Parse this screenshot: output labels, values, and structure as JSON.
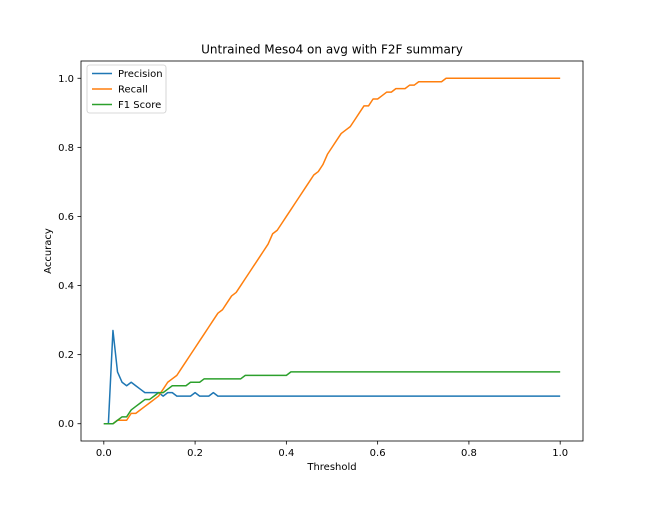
{
  "chart_data": {
    "type": "line",
    "title": "Untrained Meso4 on avg with F2F summary",
    "xlabel": "Threshold",
    "ylabel": "Accuracy",
    "xlim": [
      -0.05,
      1.05
    ],
    "ylim": [
      -0.05,
      1.05
    ],
    "xticks": [
      0.0,
      0.2,
      0.4,
      0.6,
      0.8,
      1.0
    ],
    "xtick_labels": [
      "0.0",
      "0.2",
      "0.4",
      "0.6",
      "0.8",
      "1.0"
    ],
    "yticks": [
      0.0,
      0.2,
      0.4,
      0.6,
      0.8,
      1.0
    ],
    "ytick_labels": [
      "0.0",
      "0.2",
      "0.4",
      "0.6",
      "0.8",
      "1.0"
    ],
    "grid": false,
    "legend_position": "top-left",
    "series": [
      {
        "name": "Precision",
        "color": "#1f77b4",
        "x": [
          0,
          0.01,
          0.02,
          0.03,
          0.04,
          0.05,
          0.06,
          0.07,
          0.08,
          0.09,
          0.1,
          0.11,
          0.12,
          0.13,
          0.14,
          0.15,
          0.16,
          0.17,
          0.18,
          0.19,
          0.2,
          0.21,
          0.22,
          0.23,
          0.24,
          0.25,
          0.3,
          0.4,
          0.5,
          0.6,
          0.7,
          0.8,
          0.9,
          1.0
        ],
        "y": [
          0,
          0,
          0.27,
          0.15,
          0.12,
          0.11,
          0.12,
          0.11,
          0.1,
          0.09,
          0.09,
          0.09,
          0.09,
          0.08,
          0.09,
          0.09,
          0.08,
          0.08,
          0.08,
          0.08,
          0.09,
          0.08,
          0.08,
          0.08,
          0.09,
          0.08,
          0.08,
          0.08,
          0.08,
          0.08,
          0.08,
          0.08,
          0.08,
          0.08
        ]
      },
      {
        "name": "Recall",
        "color": "#ff7f0e",
        "x": [
          0,
          0.01,
          0.02,
          0.03,
          0.04,
          0.05,
          0.06,
          0.07,
          0.08,
          0.09,
          0.1,
          0.11,
          0.12,
          0.13,
          0.14,
          0.15,
          0.16,
          0.17,
          0.18,
          0.19,
          0.2,
          0.21,
          0.22,
          0.23,
          0.24,
          0.25,
          0.26,
          0.27,
          0.28,
          0.29,
          0.3,
          0.31,
          0.32,
          0.33,
          0.34,
          0.35,
          0.36,
          0.37,
          0.38,
          0.39,
          0.4,
          0.41,
          0.42,
          0.43,
          0.44,
          0.45,
          0.46,
          0.47,
          0.48,
          0.49,
          0.5,
          0.51,
          0.52,
          0.53,
          0.54,
          0.55,
          0.56,
          0.57,
          0.58,
          0.59,
          0.6,
          0.61,
          0.62,
          0.63,
          0.64,
          0.65,
          0.66,
          0.67,
          0.68,
          0.69,
          0.7,
          0.71,
          0.72,
          0.73,
          0.74,
          0.75,
          0.8,
          0.9,
          1.0
        ],
        "y": [
          0,
          0,
          0,
          0.01,
          0.01,
          0.01,
          0.03,
          0.03,
          0.04,
          0.05,
          0.06,
          0.07,
          0.08,
          0.1,
          0.12,
          0.13,
          0.14,
          0.16,
          0.18,
          0.2,
          0.22,
          0.24,
          0.26,
          0.28,
          0.3,
          0.32,
          0.33,
          0.35,
          0.37,
          0.38,
          0.4,
          0.42,
          0.44,
          0.46,
          0.48,
          0.5,
          0.52,
          0.55,
          0.56,
          0.58,
          0.6,
          0.62,
          0.64,
          0.66,
          0.68,
          0.7,
          0.72,
          0.73,
          0.75,
          0.78,
          0.8,
          0.82,
          0.84,
          0.85,
          0.86,
          0.88,
          0.9,
          0.92,
          0.92,
          0.94,
          0.94,
          0.95,
          0.96,
          0.96,
          0.97,
          0.97,
          0.97,
          0.98,
          0.98,
          0.99,
          0.99,
          0.99,
          0.99,
          0.99,
          0.99,
          1.0,
          1.0,
          1.0,
          1.0
        ]
      },
      {
        "name": "F1 Score",
        "color": "#2ca02c",
        "x": [
          0,
          0.01,
          0.02,
          0.03,
          0.04,
          0.05,
          0.06,
          0.07,
          0.08,
          0.09,
          0.1,
          0.11,
          0.12,
          0.13,
          0.14,
          0.15,
          0.16,
          0.17,
          0.18,
          0.19,
          0.2,
          0.21,
          0.22,
          0.23,
          0.24,
          0.25,
          0.26,
          0.27,
          0.28,
          0.29,
          0.3,
          0.31,
          0.35,
          0.4,
          0.41,
          0.5,
          0.6,
          0.7,
          0.8,
          0.9,
          1.0
        ],
        "y": [
          0,
          0,
          0,
          0.01,
          0.02,
          0.02,
          0.04,
          0.05,
          0.06,
          0.07,
          0.07,
          0.08,
          0.09,
          0.09,
          0.1,
          0.11,
          0.11,
          0.11,
          0.11,
          0.12,
          0.12,
          0.12,
          0.13,
          0.13,
          0.13,
          0.13,
          0.13,
          0.13,
          0.13,
          0.13,
          0.13,
          0.14,
          0.14,
          0.14,
          0.15,
          0.15,
          0.15,
          0.15,
          0.15,
          0.15,
          0.15
        ]
      }
    ]
  }
}
